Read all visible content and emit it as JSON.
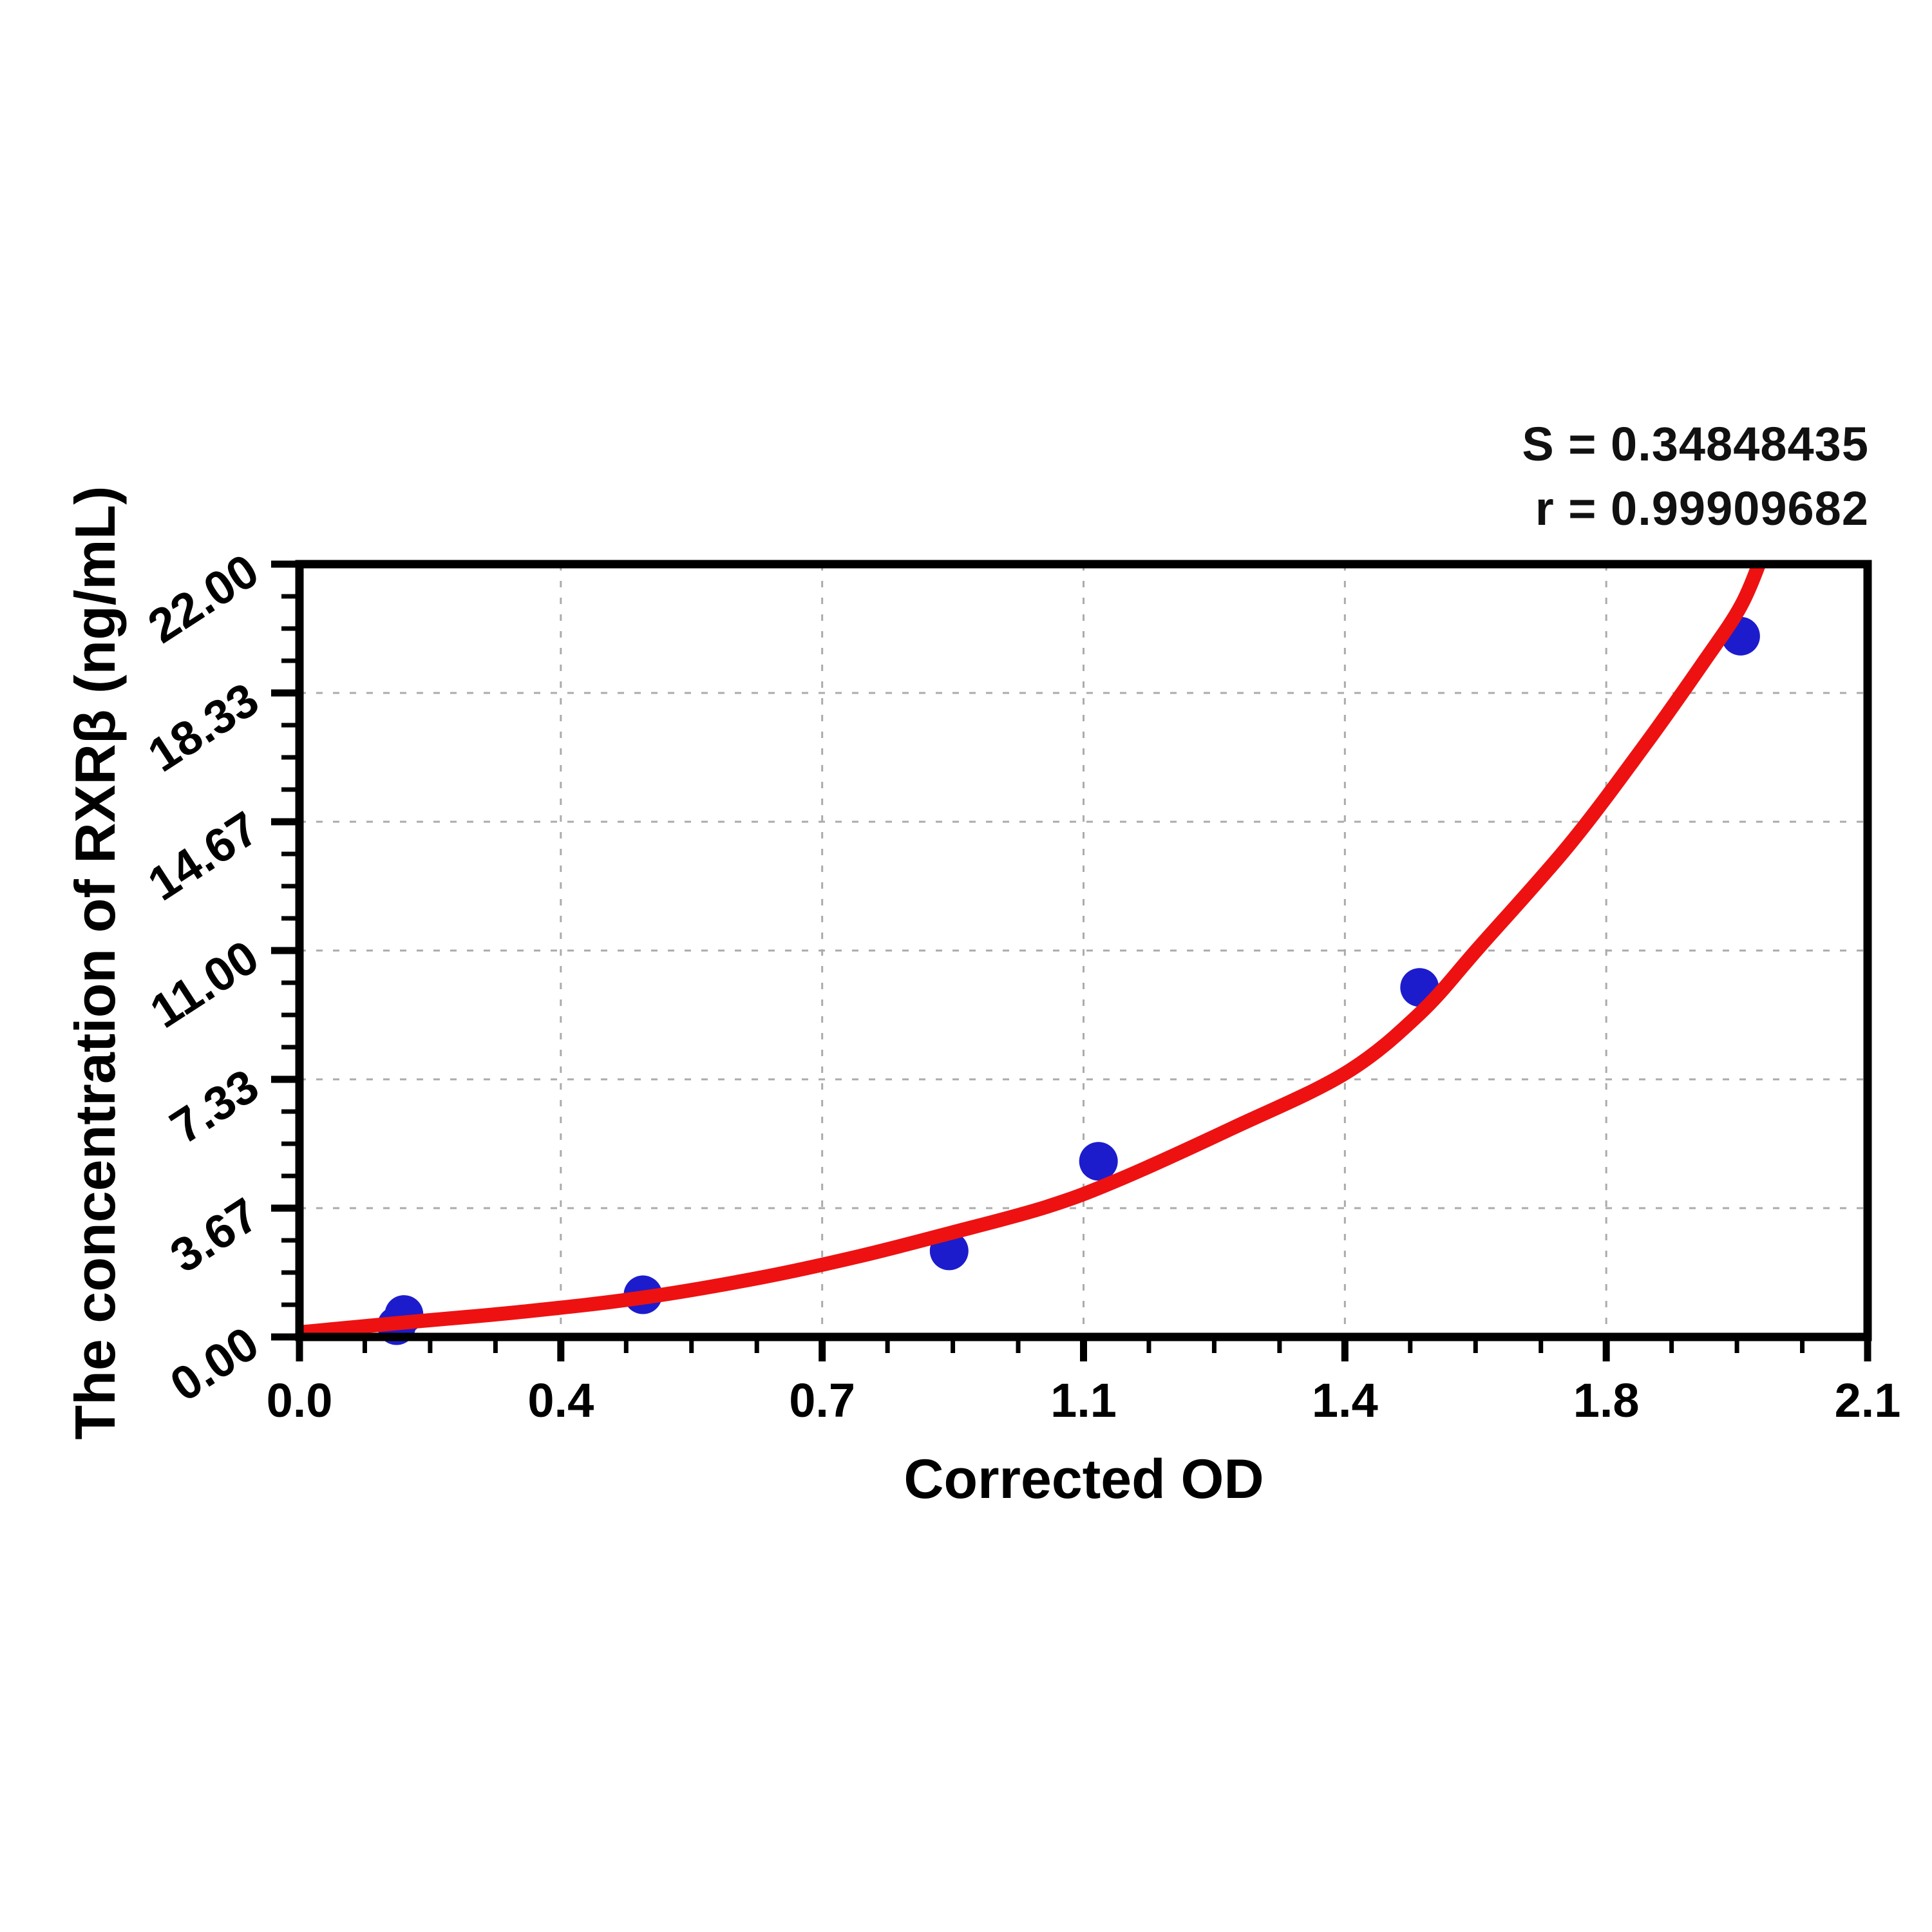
{
  "stats": {
    "s_line": "S = 0.34848435",
    "r_line": "r = 0.99909682"
  },
  "chart_data": {
    "type": "scatter",
    "title": "",
    "xlabel": "Corrected OD",
    "ylabel": "The concentration of RXRβ (ng/mL)",
    "xlim": [
      0,
      2.1
    ],
    "ylim": [
      0,
      22
    ],
    "grid": true,
    "grid_style": "dashed",
    "legend_position": "none",
    "x_ticks": {
      "values": [
        0,
        0.35,
        0.7,
        1.05,
        1.4,
        1.75,
        2.1
      ],
      "labels": [
        "0.0",
        "0.4",
        "0.7",
        "1.1",
        "1.4",
        "1.8",
        "2.1"
      ],
      "minor_per_interval": 3
    },
    "y_ticks": {
      "values": [
        0,
        3.67,
        7.33,
        11.0,
        14.67,
        18.33,
        22.0
      ],
      "labels": [
        "0.00",
        "3.67",
        "7.33",
        "11.00",
        "14.67",
        "18.33",
        "22.00"
      ],
      "minor_per_interval": 3,
      "label_rotation_deg": -33
    },
    "series": [
      {
        "name": "standard-points",
        "kind": "scatter",
        "marker": "circle",
        "color": "#1c1ccd",
        "points": [
          [
            0.13,
            0.32
          ],
          [
            0.14,
            0.64
          ],
          [
            0.46,
            1.2
          ],
          [
            0.87,
            2.45
          ],
          [
            1.07,
            5.0
          ],
          [
            1.5,
            9.95
          ],
          [
            1.93,
            19.95
          ]
        ]
      },
      {
        "name": "fitted-curve",
        "kind": "line",
        "color": "#ee1111",
        "points": [
          [
            0.0,
            0.13
          ],
          [
            0.15,
            0.43
          ],
          [
            0.3,
            0.72
          ],
          [
            0.46,
            1.12
          ],
          [
            0.62,
            1.7
          ],
          [
            0.75,
            2.3
          ],
          [
            0.87,
            2.95
          ],
          [
            1.0,
            3.7
          ],
          [
            1.1,
            4.5
          ],
          [
            1.25,
            5.95
          ],
          [
            1.4,
            7.5
          ],
          [
            1.5,
            9.2
          ],
          [
            1.58,
            11.1
          ],
          [
            1.7,
            14.0
          ],
          [
            1.8,
            16.8
          ],
          [
            1.88,
            19.2
          ],
          [
            1.93,
            20.8
          ],
          [
            1.96,
            22.3
          ]
        ]
      }
    ],
    "annotations": [
      "S = 0.34848435",
      "r = 0.99909682"
    ],
    "colors": {
      "curve": "#ee1111",
      "points": "#1c1ccd",
      "grid": "#ababab",
      "axis": "#000000"
    }
  }
}
